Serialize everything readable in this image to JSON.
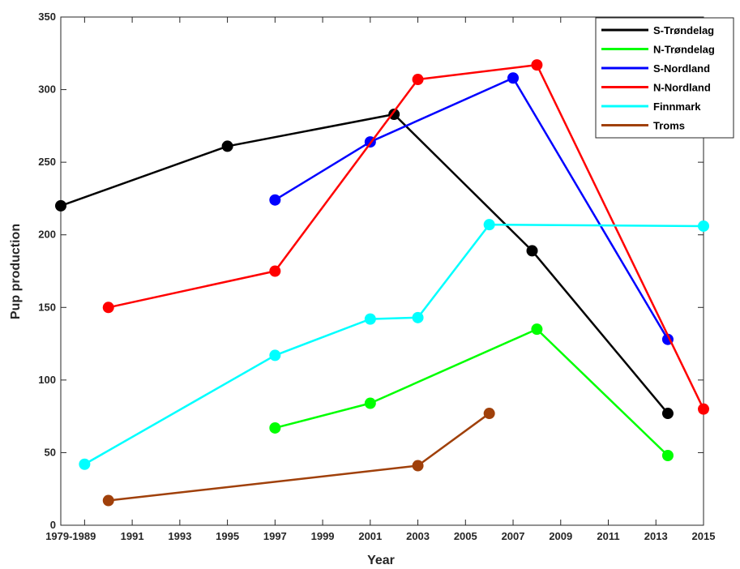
{
  "chart_data": {
    "type": "line",
    "title": "",
    "xlabel": "Year",
    "ylabel": "Pup production",
    "xlim": [
      1988,
      2015
    ],
    "ylim": [
      0,
      350
    ],
    "yticks": [
      0,
      50,
      100,
      150,
      200,
      250,
      300,
      350
    ],
    "xticks": [
      {
        "value": 1989,
        "label": "1979-1989"
      },
      {
        "value": 1991,
        "label": "1991"
      },
      {
        "value": 1993,
        "label": "1993"
      },
      {
        "value": 1995,
        "label": "1995"
      },
      {
        "value": 1997,
        "label": "1997"
      },
      {
        "value": 1999,
        "label": "1999"
      },
      {
        "value": 2001,
        "label": "2001"
      },
      {
        "value": 2003,
        "label": "2003"
      },
      {
        "value": 2005,
        "label": "2005"
      },
      {
        "value": 2007,
        "label": "2007"
      },
      {
        "value": 2009,
        "label": "2009"
      },
      {
        "value": 2011,
        "label": "2011"
      },
      {
        "value": 2013,
        "label": "2013"
      },
      {
        "value": 2015,
        "label": "2015"
      }
    ],
    "legend_position": "top-right",
    "grid": false,
    "series": [
      {
        "name": "S-Trøndelag",
        "color": "#000000",
        "points": [
          [
            1988,
            220
          ],
          [
            1995,
            261
          ],
          [
            2002,
            283
          ],
          [
            2007.8,
            189
          ],
          [
            2013.5,
            77
          ]
        ]
      },
      {
        "name": "N-Trøndelag",
        "color": "#00ff00",
        "points": [
          [
            1997,
            67
          ],
          [
            2001,
            84
          ],
          [
            2008,
            135
          ],
          [
            2013.5,
            48
          ]
        ]
      },
      {
        "name": "S-Nordland",
        "color": "#0000ff",
        "points": [
          [
            1997,
            224
          ],
          [
            2001,
            264
          ],
          [
            2007,
            308
          ],
          [
            2013.5,
            128
          ]
        ]
      },
      {
        "name": "N-Nordland",
        "color": "#ff0000",
        "points": [
          [
            1990,
            150
          ],
          [
            1997,
            175
          ],
          [
            2003,
            307
          ],
          [
            2008,
            317
          ],
          [
            2015,
            80
          ]
        ]
      },
      {
        "name": "Finnmark",
        "color": "#00ffff",
        "points": [
          [
            1989,
            42
          ],
          [
            1997,
            117
          ],
          [
            2001,
            142
          ],
          [
            2003,
            143
          ],
          [
            2006,
            207
          ],
          [
            2015,
            206
          ]
        ]
      },
      {
        "name": "Troms",
        "color": "#a0400a",
        "points": [
          [
            1990,
            17
          ],
          [
            2003,
            41
          ],
          [
            2006,
            77
          ]
        ]
      }
    ]
  }
}
